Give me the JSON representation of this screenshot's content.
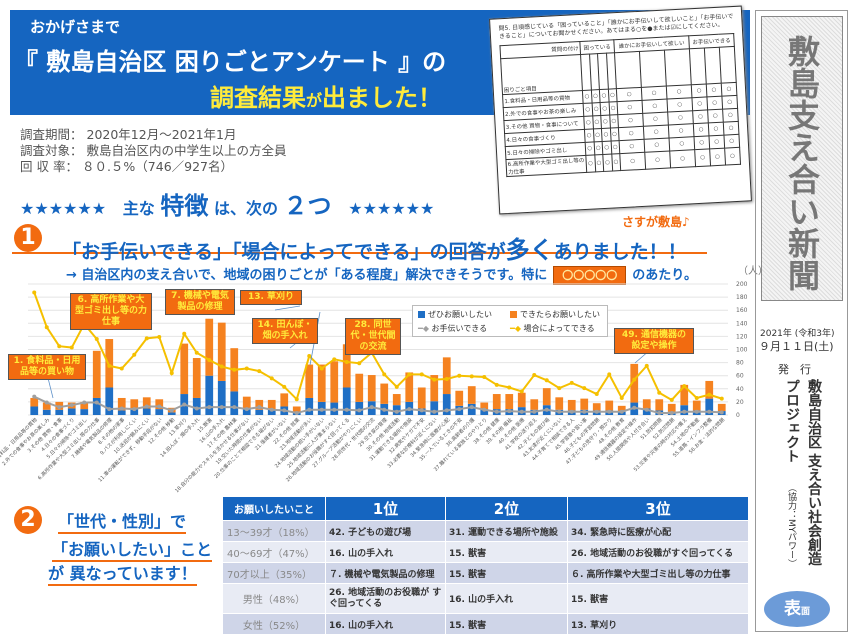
{
  "header": {
    "lead": "おかげさまで",
    "title": "『 敷島自治区 困りごとアンケート 』の",
    "result_a": "調査結果",
    "result_b": "が",
    "result_c": "出ました",
    "result_d": "！"
  },
  "survey_form": {
    "question": "問5. 日頃感じている「困っていること」「誰かにお手伝いして欲しいこと」「お手伝いできること」についてお聞かせください。あてはまる○を●または☑にしてください。",
    "col_groups": [
      "困っている",
      "誰かにお手伝いして欲しい",
      "お手伝いできる"
    ],
    "corner_top": "質問の付け",
    "corner_bottom": "困りごと項目",
    "rows": [
      "1.食料品・日用品等の買物",
      "2.外での食事やお茶の楽しみ",
      "3.その他 買物・食事について",
      "4.日々の食事づくり",
      "5.日々の掃除やゴミ出し",
      "6.高所作業や大型ゴミ出し等の力仕事"
    ],
    "mark": "○"
  },
  "info": [
    {
      "label": "調査期間：",
      "value": "2020年12月～2021年1月"
    },
    {
      "label": "調査対象：",
      "value": "敷島自治区内の中学生以上の方全員"
    },
    {
      "label": "回 収 率：",
      "value": "８０.５%（746／927名）"
    }
  ],
  "features": {
    "stars": "★★★★★★",
    "a": "主な",
    "b": "特徴",
    "c": "は、次の",
    "d": "２つ"
  },
  "section1": {
    "num": "1",
    "a": "「お手伝いできる」「場合によってできる」の回答が",
    "b": "多く",
    "c": "ありました！！",
    "tag": "さすが敷島♪"
  },
  "note": {
    "a": "→ 自治区内の支え合いで、地域の困りごとが「ある程度」解決できそうです。特に",
    "box": "〇〇〇〇〇",
    "b": "のあたり。"
  },
  "chart_data": {
    "type": "bar",
    "stacked": true,
    "yunit": "（人）",
    "ylim": [
      0,
      200
    ],
    "yticks": [
      0,
      20,
      40,
      60,
      80,
      100,
      120,
      140,
      160,
      180,
      200
    ],
    "grid": true,
    "legend_placement": "top-center",
    "categories": [
      "1.食料品・日用品等の買物",
      "2.外での食事やお茶の楽しみ",
      "3.その他 買物・食事",
      "4.日々の食事づくり",
      "5.日々の掃除やゴミ出し",
      "6.高所作業や大型ゴミ出し等の力仕事",
      "7.機械や電気製品の修理",
      "8.その他の家事",
      "9.バスが利用しにくい",
      "10.送迎が頼みにくい",
      "11.車の運転ができず、移動手段がない",
      "12.その他 移動",
      "13.草刈り",
      "14.田んぼ・畑の手入れ",
      "15.獣害",
      "16.山の手入れ",
      "17.その他 農林業",
      "18.自分の能力やスキルを活かせる仕事がない",
      "19.空いた時間の仕事がない",
      "20.仕事のことで相談できる場がない",
      "21.後継者がいない",
      "22.その他 就業",
      "23.地域活動が多い",
      "24.地域活動の担い手がいない",
      "25.地域活動に人が集まらない",
      "26.地域活動のお役職がすぐ回ってくる",
      "27.グループ活動がやりにくい",
      "28.同世代・世代間の交流",
      "29.空き家の管理",
      "30.その他 地域活動",
      "31.運動できる場所や施設",
      "32.病気やケガで不安",
      "33.必要な診療科が近くにない",
      "34.緊急時に医療が心配",
      "35.一人でいるときの不安",
      "36.高齢者の介護",
      "37.離れている家族とのやりとり",
      "38.その他 健康",
      "39.その他 福祉",
      "40.その他 医療",
      "41.学校の送り迎え",
      "42.子どもの遊び場",
      "43.友達が近くにいない",
      "44.子育てで相談できる人",
      "45.学習塾や習い事",
      "46.子どもの学習問題",
      "47.子どもの見守り・預かり",
      "48.その他 教育",
      "49.通信機器の設定や操作",
      "50.人間関係や人付き合い",
      "51.防犯問題",
      "52.防災問題",
      "53.災害や災害の時の対応や備え",
      "54.土地の不動産",
      "55.道路・インフラ整備",
      "56.お金・法的な問題"
    ],
    "series": [
      {
        "name": "ぜひお願いしたい",
        "kind": "bar",
        "color": "#1f6fc5",
        "values": [
          13,
          8,
          8,
          10,
          9,
          26,
          42,
          7,
          9,
          10,
          9,
          4,
          32,
          26,
          60,
          52,
          36,
          10,
          8,
          9,
          13,
          5,
          26,
          20,
          19,
          42,
          20,
          21,
          17,
          15,
          20,
          10,
          21,
          32,
          14,
          17,
          9,
          9,
          9,
          12,
          8,
          15,
          8,
          7,
          8,
          7,
          7,
          5,
          19,
          10,
          7,
          5,
          15,
          7,
          25,
          6
        ]
      },
      {
        "name": "できたらお願いしたい",
        "kind": "bar",
        "color": "#f58220",
        "values": [
          13,
          11,
          12,
          9,
          11,
          72,
          74,
          19,
          15,
          17,
          15,
          7,
          77,
          61,
          87,
          89,
          66,
          18,
          15,
          14,
          20,
          8,
          51,
          57,
          63,
          66,
          43,
          40,
          31,
          17,
          45,
          32,
          40,
          56,
          23,
          27,
          10,
          23,
          23,
          22,
          16,
          26,
          19,
          16,
          17,
          11,
          15,
          9,
          59,
          14,
          17,
          12,
          31,
          15,
          27,
          11
        ]
      },
      {
        "name": "お手伝いできる",
        "kind": "line",
        "color": "#a0a0a0",
        "values": [
          28,
          19,
          12,
          15,
          19,
          19,
          9,
          10,
          9,
          13,
          13,
          7,
          16,
          10,
          12,
          12,
          12,
          9,
          12,
          8,
          7,
          3,
          8,
          8,
          8,
          8,
          7,
          12,
          8,
          5,
          9,
          7,
          5,
          7,
          9,
          12,
          8,
          5,
          6,
          5,
          5,
          8,
          5,
          5,
          5,
          5,
          5,
          5,
          11,
          8,
          3,
          3,
          5,
          5,
          5,
          4
        ]
      },
      {
        "name": "場合によってできる",
        "kind": "line",
        "color": "#f5c000",
        "values": [
          187,
          134,
          105,
          103,
          139,
          116,
          75,
          71,
          92,
          117,
          119,
          64,
          124,
          95,
          84,
          74,
          69,
          71,
          67,
          56,
          43,
          24,
          90,
          71,
          85,
          81,
          79,
          95,
          62,
          43,
          62,
          62,
          54,
          55,
          60,
          59,
          58,
          46,
          42,
          36,
          61,
          53,
          41,
          49,
          41,
          32,
          62,
          26,
          54,
          75,
          34,
          23,
          44,
          26,
          31,
          25
        ]
      }
    ],
    "callouts": [
      "1. 食料品・日用品等の買い物",
      "6. 高所作業や大型ゴミ出し等の力仕事",
      "7. 機械や電気製品の修理",
      "13. 草刈り",
      "14. 田んぼ・畑の手入れ",
      "28. 同世代・世代間の交流",
      "49. 通信機器の設定や操作"
    ]
  },
  "section2": {
    "num": "2",
    "l1": "「世代・性別」で",
    "l2": "「お願いしたい」こと",
    "l3": "が 異なっています！"
  },
  "table": {
    "headers": [
      "お願いしたいこと",
      "1位",
      "2位",
      "3位"
    ],
    "rows": [
      [
        "13～39才（18%）",
        "42. 子どもの遊び場",
        "31. 運動できる場所や施設",
        "34. 緊急時に医療が心配"
      ],
      [
        "40～69才（47%）",
        "16. 山の手入れ",
        "15. 獣害",
        "26. 地域活動のお役職がすぐ回ってくる"
      ],
      [
        "70才以上（35%）",
        "７. 機械や電気製品の修理",
        "15. 獣害",
        "６. 高所作業や大型ゴミ出し等の力仕事"
      ],
      [
        "男性（48%）",
        "26. 地域活動のお役職が すぐ回ってくる",
        "16. 山の手入れ",
        "15. 獣害"
      ],
      [
        "女性（52%）",
        "16. 山の手入れ",
        "15. 獣害",
        "13. 草刈り"
      ]
    ]
  },
  "sidebar": {
    "title": "敷島支え合い新聞",
    "date_year": "2021年 (令和3年)",
    "date": "９月１１日(土)",
    "publisher_label": "発　行",
    "publisher": "敷島自治区 支え合い社会創造",
    "publisher2": "プロジェクト",
    "cooperation": "（協力：MYパワー）",
    "side_a": "表",
    "side_b": "面"
  }
}
